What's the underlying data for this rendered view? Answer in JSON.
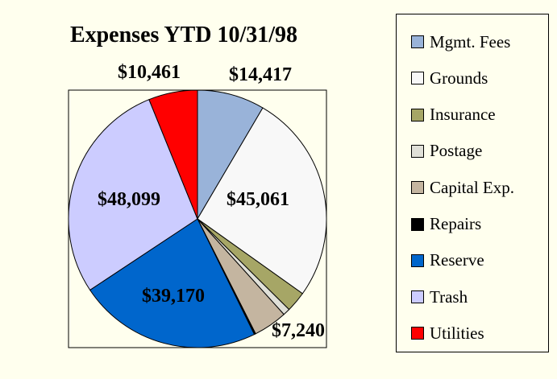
{
  "chart_data": {
    "type": "pie",
    "title": "Expenses YTD 10/31/98",
    "start_angle": "top",
    "direction": "clockwise",
    "legend_position": "right",
    "slices": [
      {
        "name": "Mgmt. Fees",
        "value": 14417,
        "label": "$14,417",
        "color": "#99b3d9"
      },
      {
        "name": "Grounds",
        "value": 45061,
        "label": "$45,061",
        "color": "#f8f8f8"
      },
      {
        "name": "Insurance",
        "value": 4400,
        "label": "",
        "color": "#a6a666"
      },
      {
        "name": "Postage",
        "value": 1500,
        "label": "",
        "color": "#e0e0d8"
      },
      {
        "name": "Capital Exp.",
        "value": 7240,
        "label": "$7,240",
        "color": "#c4b5a0"
      },
      {
        "name": "Repairs",
        "value": 300,
        "label": "",
        "color": "#000000"
      },
      {
        "name": "Reserve",
        "value": 39170,
        "label": "$39,170",
        "color": "#0066cc"
      },
      {
        "name": "Trash",
        "value": 48099,
        "label": "$48,099",
        "color": "#ccccff"
      },
      {
        "name": "Utilities",
        "value": 10461,
        "label": "$10,461",
        "color": "#ff0000"
      }
    ]
  }
}
